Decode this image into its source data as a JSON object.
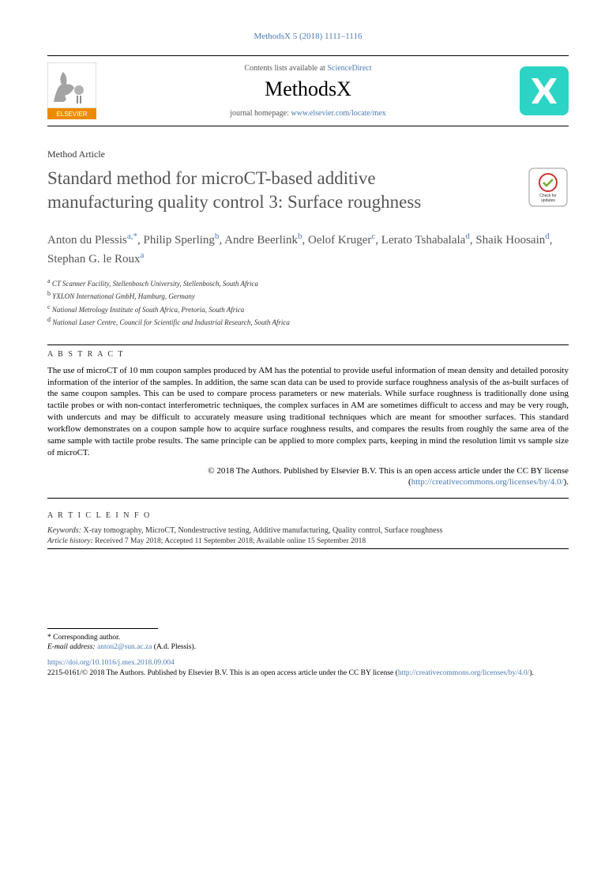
{
  "citation": "MethodsX 5 (2018) 1111–1116",
  "header": {
    "contents_text": "Contents lists available at ",
    "contents_link": "ScienceDirect",
    "journal_name": "MethodsX",
    "homepage_text": "journal homepage: ",
    "homepage_link": "www.elsevier.com/locate/mex"
  },
  "article_type": "Method Article",
  "title": "Standard method for microCT-based additive manufacturing quality control 3: Surface roughness",
  "authors_html": "Anton du Plessis<a>a,</a><a>*</a>, Philip Sperling<a>b</a>, Andre Beerlink<a>b</a>, Oelof Kruger<a>c</a>, Lerato Tshabalala<a>d</a>, Shaik Hoosain<a>d</a>, Stephan G. le Roux<a>a</a>",
  "affiliations": [
    {
      "sup": "a",
      "text": "CT Scanner Facility, Stellenbosch University, Stellenbosch, South Africa"
    },
    {
      "sup": "b",
      "text": "YXLON International GmbH, Hamburg, Germany"
    },
    {
      "sup": "c",
      "text": "National Metrology Institute of South Africa, Pretoria, South Africa"
    },
    {
      "sup": "d",
      "text": "National Laser Centre, Council for Scientific and Industrial Research, South Africa"
    }
  ],
  "abstract_label": "A B S T R A C T",
  "abstract": "The use of microCT of 10 mm coupon samples produced by AM has the potential to provide useful information of mean density and detailed porosity information of the interior of the samples. In addition, the same scan data can be used to provide surface roughness analysis of the as-built surfaces of the same coupon samples. This can be used to compare process parameters or new materials. While surface roughness is traditionally done using tactile probes or with non-contact interferometric techniques, the complex surfaces in AM are sometimes difficult to access and may be very rough, with undercuts and may be difficult to accurately measure using traditional techniques which are meant for smoother surfaces. This standard workflow demonstrates on a coupon sample how to acquire surface roughness results, and compares the results from roughly the same area of the same sample with tactile probe results. The same principle can be applied to more complex parts, keeping in mind the resolution limit vs sample size of microCT.",
  "copyright_main": "© 2018 The Authors. Published by Elsevier B.V. This is an open access article under the CC BY license (",
  "copyright_link": "http://creativecommons.org/licenses/by/4.0/",
  "copyright_close": ").",
  "article_info_label": "A R T I C L E  I N F O",
  "keywords_label": "Keywords:",
  "keywords": "X-ray tomography, MicroCT, Nondestructive testing, Additive manufacturing, Quality control, Surface roughness",
  "history_label": "Article history:",
  "history": "Received 7 May 2018; Accepted 11 September 2018; Available online 15 September 2018",
  "corresponding_marker": "*",
  "corresponding_text": "Corresponding author.",
  "email_label": "E-mail address:",
  "email": "anton2@sun.ac.za",
  "email_attribution": "(A.d. Plessis).",
  "doi": "https://doi.org/10.1016/j.mex.2018.09.004",
  "footer_copy_prefix": "2215-0161/© 2018 The Authors. Published by Elsevier B.V. This is an open access article under the CC BY license (",
  "footer_copy_link": "http://creativecommons.org/licenses/by/4.0/",
  "footer_copy_close": ").",
  "colors": {
    "link": "#4a7bb5",
    "logo_bg": "#2bd4c4",
    "elsevier_orange": "#ed8b00",
    "title_color": "#555555"
  }
}
